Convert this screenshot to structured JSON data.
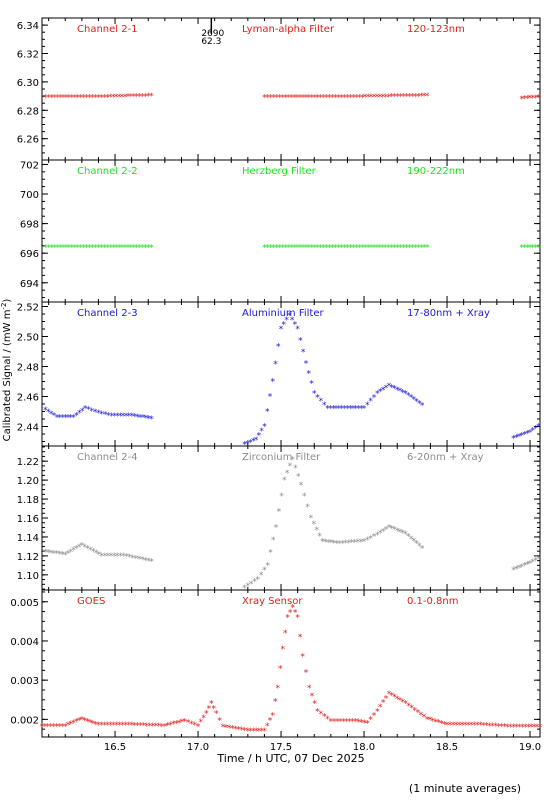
{
  "chart_data": [
    {
      "type": "scatter",
      "labels": {
        "channel": "Channel 2-1",
        "filter": "Lyman-alpha Filter",
        "band": "120-123nm"
      },
      "color": "#e0201b",
      "ylim": [
        6.245,
        6.345
      ],
      "yticks": [
        "6.26",
        "6.28",
        "6.30",
        "6.32",
        "6.34"
      ],
      "annotation": {
        "x": 17.08,
        "lines": [
          "2690",
          "62.3"
        ]
      },
      "series": [
        {
          "values": [
            [
              16.08,
              6.289
            ],
            [
              16.4,
              6.289
            ],
            [
              16.72,
              6.29
            ]
          ]
        },
        {
          "values": [
            [
              17.4,
              6.289
            ],
            [
              17.9,
              6.289
            ],
            [
              18.38,
              6.29
            ]
          ]
        },
        {
          "values": [
            [
              18.95,
              6.288
            ],
            [
              19.05,
              6.289
            ]
          ]
        }
      ]
    },
    {
      "type": "scatter",
      "labels": {
        "channel": "Channel 2-2",
        "filter": "Herzberg Filter",
        "band": "190-222nm"
      },
      "color": "#22e022",
      "ylim": [
        692.7,
        702.3
      ],
      "yticks": [
        "694",
        "696",
        "698",
        "700",
        "702"
      ],
      "series": [
        {
          "values": [
            [
              16.08,
              696.4
            ],
            [
              16.4,
              696.4
            ],
            [
              16.72,
              696.4
            ]
          ]
        },
        {
          "values": [
            [
              17.4,
              696.4
            ],
            [
              17.9,
              696.4
            ],
            [
              18.38,
              696.4
            ]
          ]
        },
        {
          "values": [
            [
              18.95,
              696.4
            ],
            [
              19.05,
              696.4
            ]
          ]
        }
      ]
    },
    {
      "type": "scatter",
      "labels": {
        "channel": "Channel 2-3",
        "filter": "Aluminium Filter",
        "band": "17-80nm + Xray"
      },
      "color": "#1a1ad8",
      "ylim": [
        2.427,
        2.523
      ],
      "yticks": [
        "2.44",
        "2.46",
        "2.48",
        "2.50",
        "2.52"
      ],
      "series": [
        {
          "values": [
            [
              16.08,
              2.451
            ],
            [
              16.15,
              2.446
            ],
            [
              16.25,
              2.446
            ],
            [
              16.32,
              2.452
            ],
            [
              16.4,
              2.449
            ],
            [
              16.48,
              2.447
            ],
            [
              16.6,
              2.447
            ],
            [
              16.72,
              2.445
            ]
          ]
        },
        {
          "values": [
            [
              17.28,
              2.428
            ],
            [
              17.35,
              2.431
            ],
            [
              17.4,
              2.44
            ],
            [
              17.45,
              2.47
            ],
            [
              17.5,
              2.505
            ],
            [
              17.55,
              2.514
            ],
            [
              17.6,
              2.505
            ],
            [
              17.65,
              2.482
            ],
            [
              17.7,
              2.462
            ],
            [
              17.78,
              2.452
            ],
            [
              17.9,
              2.452
            ],
            [
              18.0,
              2.452
            ],
            [
              18.08,
              2.462
            ],
            [
              18.15,
              2.467
            ],
            [
              18.25,
              2.462
            ],
            [
              18.35,
              2.454
            ]
          ]
        },
        {
          "values": [
            [
              18.9,
              2.432
            ],
            [
              19.0,
              2.436
            ],
            [
              19.05,
              2.44
            ]
          ]
        }
      ]
    },
    {
      "type": "scatter",
      "labels": {
        "channel": "Channel 2-4",
        "filter": "Zirconium Filter",
        "band": "6-20nm + Xray"
      },
      "color": "#8c8c8c",
      "ylim": [
        1.084,
        1.236
      ],
      "yticks": [
        "1.10",
        "1.12",
        "1.14",
        "1.16",
        "1.18",
        "1.20",
        "1.22"
      ],
      "series": [
        {
          "values": [
            [
              16.08,
              1.124
            ],
            [
              16.2,
              1.121
            ],
            [
              16.3,
              1.131
            ],
            [
              16.42,
              1.12
            ],
            [
              16.55,
              1.12
            ],
            [
              16.72,
              1.114
            ]
          ]
        },
        {
          "values": [
            [
              17.28,
              1.086
            ],
            [
              17.36,
              1.095
            ],
            [
              17.42,
              1.11
            ],
            [
              17.47,
              1.15
            ],
            [
              17.52,
              1.2
            ],
            [
              17.57,
              1.222
            ],
            [
              17.62,
              1.195
            ],
            [
              17.68,
              1.16
            ],
            [
              17.75,
              1.135
            ],
            [
              17.85,
              1.133
            ],
            [
              18.0,
              1.135
            ],
            [
              18.08,
              1.142
            ],
            [
              18.15,
              1.15
            ],
            [
              18.25,
              1.143
            ],
            [
              18.35,
              1.128
            ]
          ]
        },
        {
          "values": [
            [
              18.9,
              1.105
            ],
            [
              19.0,
              1.112
            ],
            [
              19.05,
              1.117
            ]
          ]
        }
      ]
    },
    {
      "type": "scatter",
      "labels": {
        "channel": "GOES",
        "filter": "Xray Sensor",
        "band": "0.1-0.8nm"
      },
      "color": "#e0201b",
      "ylim": [
        0.00155,
        0.0053
      ],
      "yticks": [
        "0.002",
        "0.003",
        "0.004",
        "0.005"
      ],
      "xlim": [
        16.06,
        19.06
      ],
      "xticks": [
        "16.5",
        "17.0",
        "17.5",
        "18.0",
        "18.5",
        "19.0"
      ],
      "xlabel": "Time / h UTC, 07 Dec 2025",
      "series": [
        {
          "values": [
            [
              16.06,
              0.00182
            ],
            [
              16.2,
              0.00182
            ],
            [
              16.3,
              0.002
            ],
            [
              16.4,
              0.00185
            ],
            [
              16.6,
              0.00185
            ],
            [
              16.8,
              0.00182
            ],
            [
              16.92,
              0.00195
            ],
            [
              17.0,
              0.00182
            ],
            [
              17.05,
              0.00215
            ],
            [
              17.08,
              0.0024
            ],
            [
              17.11,
              0.00215
            ],
            [
              17.15,
              0.0018
            ],
            [
              17.3,
              0.0017
            ],
            [
              17.4,
              0.0017
            ],
            [
              17.45,
              0.0021
            ],
            [
              17.48,
              0.0028
            ],
            [
              17.51,
              0.0038
            ],
            [
              17.54,
              0.0046
            ],
            [
              17.57,
              0.00485
            ],
            [
              17.6,
              0.0046
            ],
            [
              17.63,
              0.0036
            ],
            [
              17.67,
              0.0028
            ],
            [
              17.72,
              0.0022
            ],
            [
              17.8,
              0.00195
            ],
            [
              17.95,
              0.00195
            ],
            [
              18.02,
              0.0019
            ],
            [
              18.08,
              0.0022
            ],
            [
              18.15,
              0.00265
            ],
            [
              18.25,
              0.0024
            ],
            [
              18.38,
              0.002
            ],
            [
              18.5,
              0.00185
            ],
            [
              18.7,
              0.00185
            ],
            [
              18.9,
              0.0018
            ],
            [
              19.06,
              0.0018
            ]
          ]
        }
      ]
    }
  ],
  "ylabel": "Calibrated Signal / (mW m",
  "ylabel_sup": "-2",
  "ylabel_end": ")",
  "footnote": "(1 minute averages)"
}
